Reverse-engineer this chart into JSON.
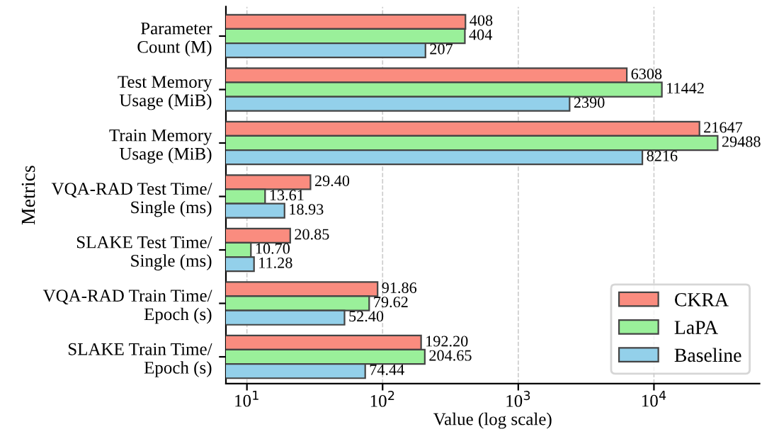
{
  "chart_data": {
    "type": "bar",
    "orientation": "horizontal",
    "log": "x",
    "xlabel": "Value (log scale)",
    "ylabel": "Metrics",
    "categories": [
      "Parameter\nCount (M)",
      "Test Memory\nUsage (MiB)",
      "Train Memory\nUsage (MiB)",
      "VQA-RAD Test Time/\nSingle (ms)",
      "SLAKE Test Time/\nSingle (ms)",
      "VQA-RAD Train Time/\nEpoch (s)",
      "SLAKE Train Time/\nEpoch (s)"
    ],
    "series": [
      {
        "name": "CKRA",
        "color": "#fa8c7f",
        "values": [
          408,
          6308,
          21647,
          29.4,
          20.85,
          91.86,
          192.2
        ]
      },
      {
        "name": "LaPA",
        "color": "#9af09a",
        "values": [
          404,
          11442,
          29488,
          13.61,
          10.7,
          79.62,
          204.65
        ]
      },
      {
        "name": "Baseline",
        "color": "#93d0ea",
        "values": [
          207,
          2390,
          8216,
          18.93,
          11.28,
          52.4,
          74.44
        ]
      }
    ],
    "value_labels": [
      [
        "408",
        "6308",
        "21647",
        "29.40",
        "20.85",
        "91.86",
        "192.20"
      ],
      [
        "404",
        "11442",
        "29488",
        "13.61",
        "10.70",
        "79.62",
        "204.65"
      ],
      [
        "207",
        "2390",
        "8216",
        "18.93",
        "11.28",
        "52.40",
        "74.44"
      ]
    ],
    "xlim": [
      7,
      60000
    ],
    "xticks": [
      {
        "value": 10,
        "label": "10$^{1}$"
      },
      {
        "value": 100,
        "label": "10$^{2}$"
      },
      {
        "value": 1000,
        "label": "10$^{3}$"
      },
      {
        "value": 10000,
        "label": "10$^{4}$"
      }
    ],
    "grid": "x",
    "legend": "bottom right"
  }
}
